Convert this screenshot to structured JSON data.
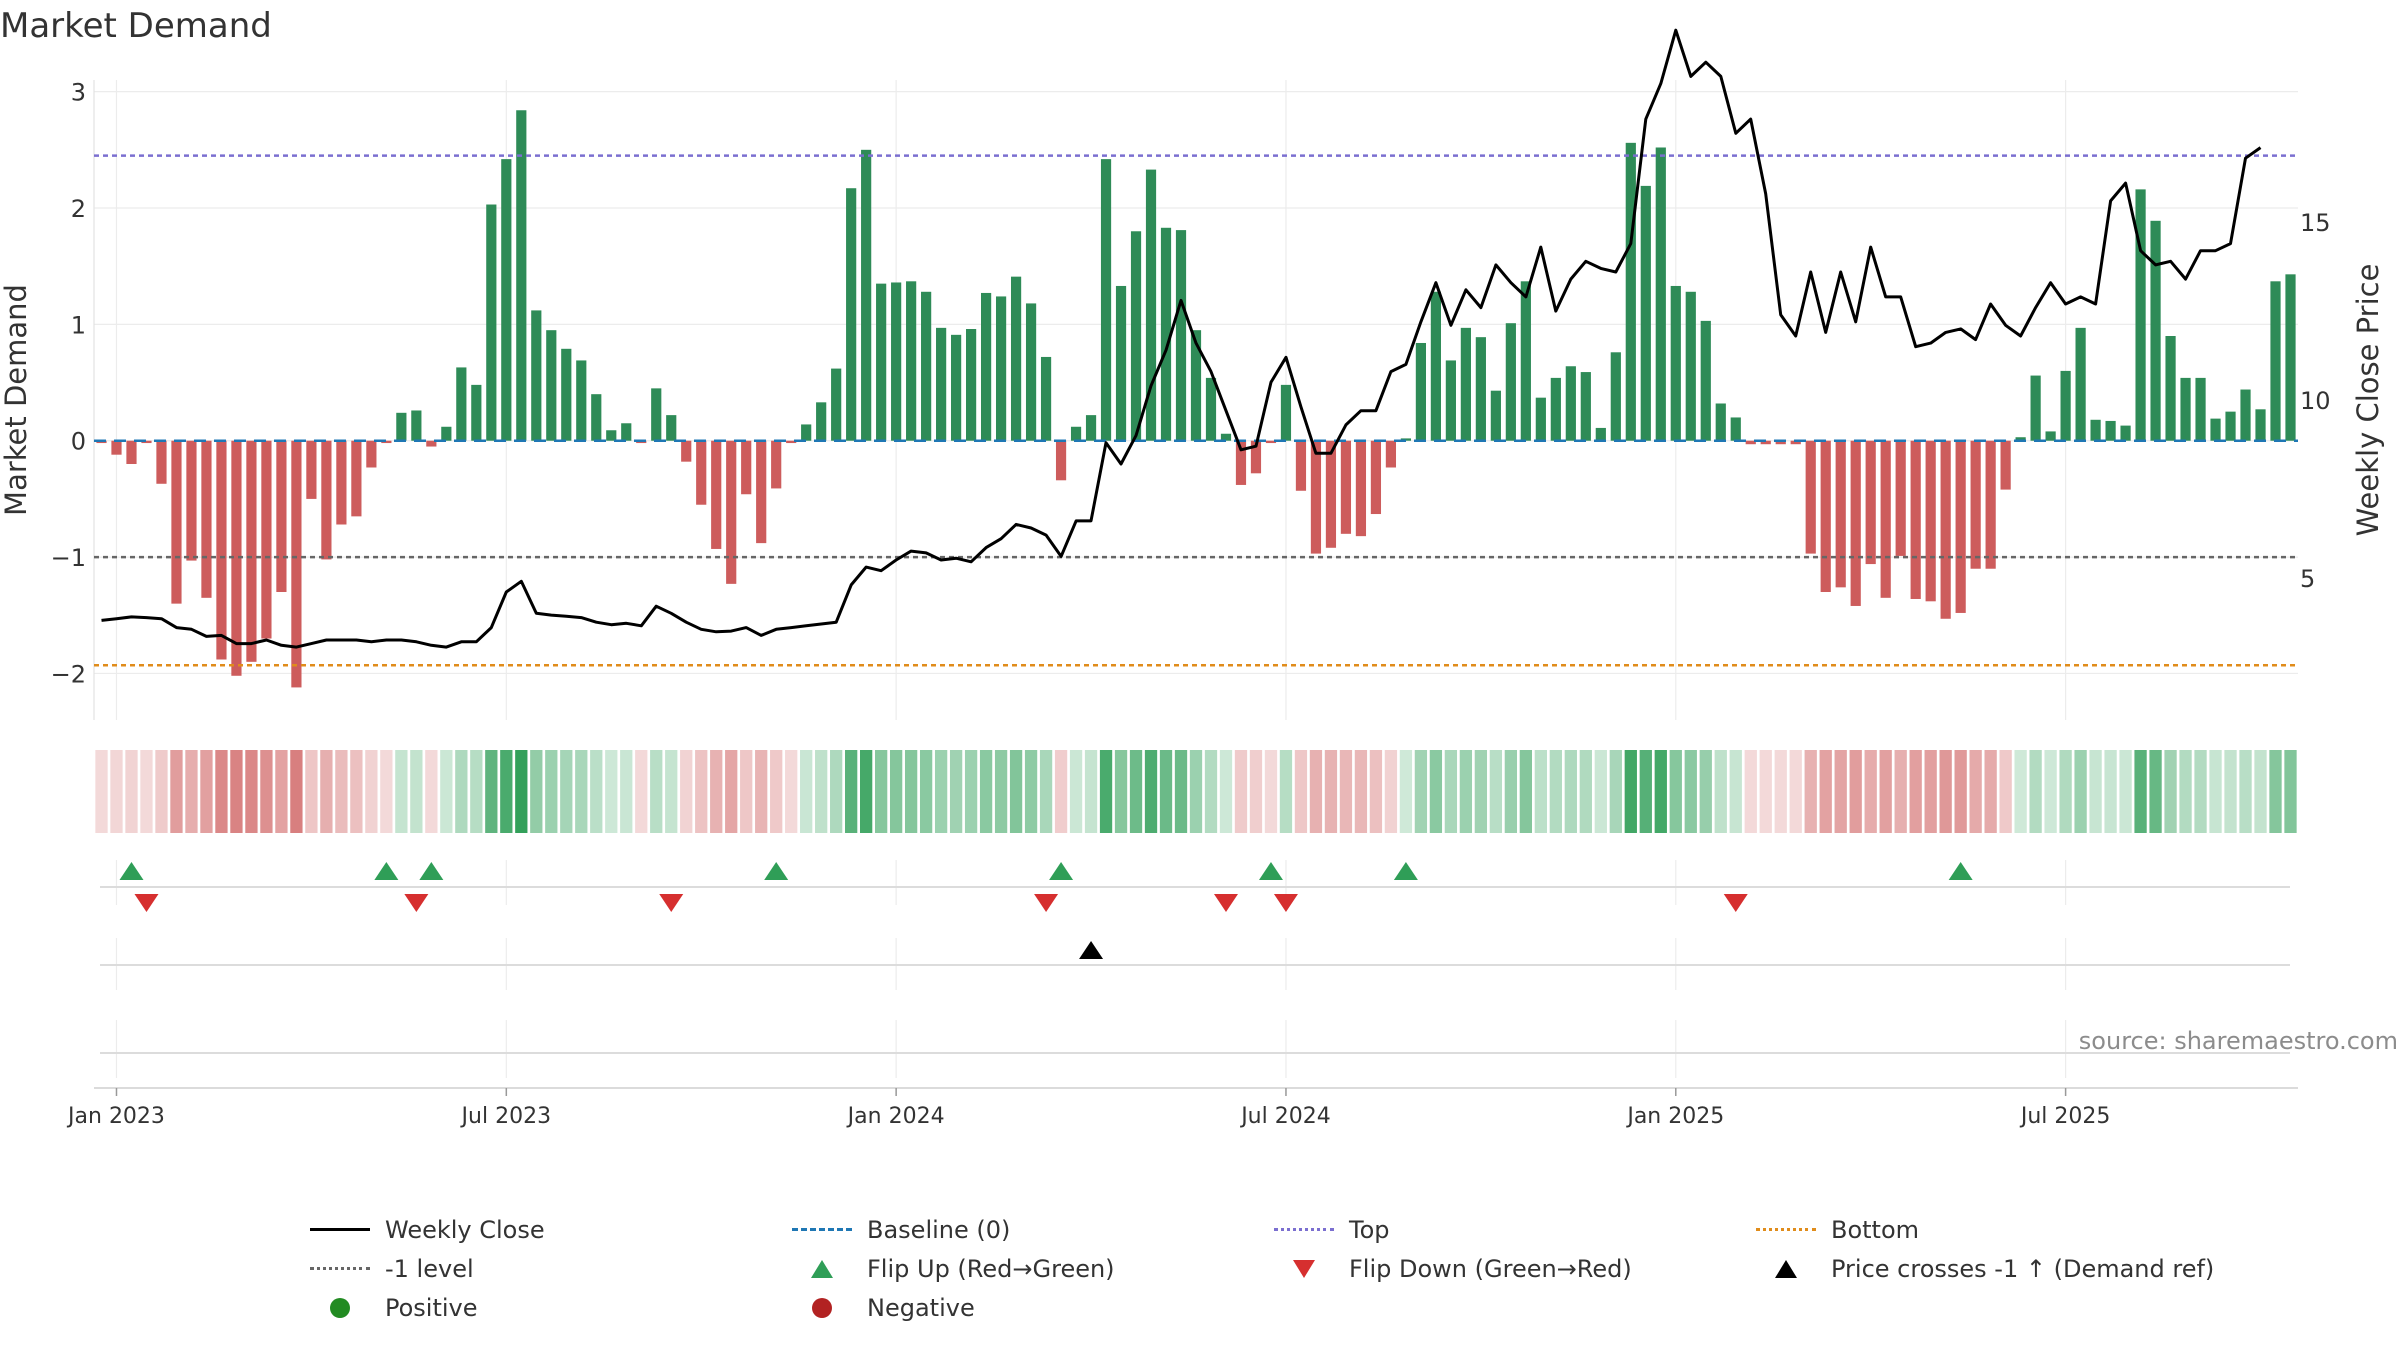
{
  "title": "Market Demand",
  "source": "source: sharemaestro.com",
  "colors": {
    "positive_bar": "#2e8b57",
    "negative_bar": "#cd5c5c",
    "line": "#000000",
    "baseline": "#1f77b4",
    "top": "#7b6fd0",
    "minus_one": "#666666",
    "bottom": "#e08c1b",
    "flip_up": "#2f9e57",
    "flip_down": "#d62f2f",
    "positive_dot": "#228b22",
    "negative_dot": "#b22222"
  },
  "legend": [
    {
      "key": "weekly_close",
      "label": "Weekly Close"
    },
    {
      "key": "baseline",
      "label": "Baseline (0)"
    },
    {
      "key": "top",
      "label": "Top"
    },
    {
      "key": "bottom",
      "label": "Bottom"
    },
    {
      "key": "minus_one",
      "label": "-1 level"
    },
    {
      "key": "flip_up",
      "label": "Flip Up (Red→Green)"
    },
    {
      "key": "flip_down",
      "label": "Flip Down (Green→Red)"
    },
    {
      "key": "price_cross",
      "label": "Price crosses -1 ↑ (Demand ref)"
    },
    {
      "key": "positive",
      "label": "Positive"
    },
    {
      "key": "negative",
      "label": "Negative"
    }
  ],
  "chart_data": {
    "type": "bar",
    "title": "Market Demand",
    "ylabel": "Market Demand",
    "y2label": "Weekly Close Price",
    "ylim": [
      -2.4,
      3.1
    ],
    "y2lim": [
      1.0,
      19.0
    ],
    "yticks": [
      3,
      2,
      1,
      0,
      -1,
      -2
    ],
    "ytick_labels": [
      "3",
      "2",
      "1",
      "0",
      "−1",
      "−2"
    ],
    "y2ticks": [
      15,
      10,
      5
    ],
    "y2tick_labels": [
      "15",
      "10",
      "5"
    ],
    "xticks": [
      {
        "week": 1,
        "label": "Jan 2023"
      },
      {
        "week": 27,
        "label": "Jul 2023"
      },
      {
        "week": 53,
        "label": "Jan 2024"
      },
      {
        "week": 79,
        "label": "Jul 2024"
      },
      {
        "week": 105,
        "label": "Jan 2025"
      },
      {
        "week": 131,
        "label": "Jul 2025"
      }
    ],
    "reference_lines": {
      "baseline": 0,
      "top": 2.45,
      "minus_one": -1,
      "bottom": -1.93
    },
    "demand": [
      -0.02,
      -0.12,
      -0.2,
      -0.02,
      -0.37,
      -1.4,
      -1.03,
      -1.35,
      -1.88,
      -2.02,
      -1.9,
      -1.7,
      -1.3,
      -2.12,
      -0.5,
      -1.02,
      -0.72,
      -0.65,
      -0.23,
      -0.02,
      0.24,
      0.26,
      -0.05,
      0.12,
      0.63,
      0.48,
      2.03,
      2.42,
      2.84,
      1.12,
      0.95,
      0.79,
      0.69,
      0.4,
      0.09,
      0.15,
      -0.02,
      0.45,
      0.22,
      -0.18,
      -0.55,
      -0.93,
      -1.23,
      -0.46,
      -0.88,
      -0.41,
      -0.02,
      0.14,
      0.33,
      0.62,
      2.17,
      2.5,
      1.35,
      1.36,
      1.37,
      1.28,
      0.97,
      0.91,
      0.96,
      1.27,
      1.24,
      1.41,
      1.18,
      0.72,
      -0.34,
      0.12,
      0.22,
      2.42,
      1.33,
      1.8,
      2.33,
      1.83,
      1.81,
      0.95,
      0.54,
      0.06,
      -0.38,
      -0.28,
      -0.02,
      0.48,
      -0.43,
      -0.97,
      -0.92,
      -0.8,
      -0.82,
      -0.63,
      -0.23,
      0.02,
      0.84,
      1.28,
      0.69,
      0.97,
      0.89,
      0.43,
      1.01,
      1.37,
      0.37,
      0.54,
      0.64,
      0.59,
      0.11,
      0.76,
      2.56,
      2.19,
      2.52,
      1.33,
      1.28,
      1.03,
      0.32,
      0.2,
      -0.03,
      -0.03,
      -0.03,
      -0.03,
      -0.97,
      -1.3,
      -1.26,
      -1.42,
      -1.06,
      -1.35,
      -0.99,
      -1.36,
      -1.38,
      -1.53,
      -1.48,
      -1.1,
      -1.1,
      -0.42,
      0.03,
      0.56,
      0.08,
      0.6,
      0.97,
      0.18,
      0.17,
      0.13,
      2.16,
      1.89,
      0.9,
      0.54,
      0.54,
      0.19,
      0.25,
      0.44,
      0.27,
      1.37,
      1.43
    ],
    "close": [
      3.8,
      3.85,
      3.9,
      3.88,
      3.85,
      3.6,
      3.55,
      3.35,
      3.38,
      3.15,
      3.15,
      3.25,
      3.1,
      3.05,
      3.15,
      3.25,
      3.25,
      3.25,
      3.2,
      3.25,
      3.25,
      3.2,
      3.1,
      3.05,
      3.2,
      3.2,
      3.6,
      4.6,
      4.9,
      4.0,
      3.95,
      3.92,
      3.88,
      3.75,
      3.68,
      3.72,
      3.65,
      4.2,
      4.0,
      3.75,
      3.55,
      3.48,
      3.5,
      3.6,
      3.38,
      3.55,
      3.6,
      3.65,
      3.7,
      3.75,
      4.8,
      5.3,
      5.2,
      5.5,
      5.75,
      5.7,
      5.5,
      5.55,
      5.45,
      5.85,
      6.1,
      6.5,
      6.4,
      6.2,
      5.6,
      6.6,
      6.6,
      8.8,
      8.2,
      9.0,
      10.4,
      11.4,
      12.8,
      11.6,
      10.8,
      9.7,
      8.6,
      8.7,
      10.5,
      11.2,
      9.8,
      8.5,
      8.5,
      9.3,
      9.7,
      9.7,
      10.8,
      11.0,
      12.2,
      13.3,
      12.1,
      13.1,
      12.6,
      13.8,
      13.3,
      12.9,
      14.3,
      12.5,
      13.4,
      13.9,
      13.7,
      13.6,
      14.4,
      17.9,
      18.9,
      20.4,
      19.1,
      19.5,
      19.1,
      17.5,
      17.9,
      15.8,
      12.4,
      11.8,
      13.6,
      11.9,
      13.6,
      12.2,
      14.3,
      12.9,
      12.9,
      11.5,
      11.6,
      11.9,
      12.0,
      11.7,
      12.7,
      12.1,
      11.8,
      12.6,
      13.3,
      12.7,
      12.9,
      12.7,
      15.6,
      16.1,
      14.2,
      13.8,
      13.9,
      13.4,
      14.2,
      14.2,
      14.4,
      16.8,
      17.1
    ],
    "flip_up_weeks": [
      2,
      19,
      22,
      45,
      64,
      78,
      87,
      124
    ],
    "flip_down_weeks": [
      3,
      21,
      38,
      63,
      75,
      79,
      109
    ],
    "price_cross_weeks": [
      66
    ]
  }
}
